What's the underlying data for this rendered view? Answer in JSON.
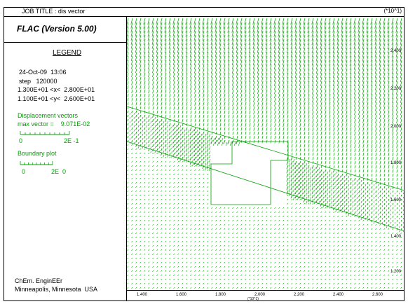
{
  "header": {
    "job_title": "JOB TITLE : dis vector",
    "y_unit": "(*10^1)"
  },
  "program": {
    "title": "FLAC (Version 5.00)"
  },
  "legend": {
    "title": "LEGEND",
    "date": "24-Oct-09  13:06",
    "step": "step   120000",
    "x_range": "1.300E+01 <x<  2.800E+01",
    "y_range": "1.100E+01 <y<  2.600E+01",
    "displacement": {
      "title": "Displacement vectors",
      "max_vector": "max vector =    9.071E-02",
      "scale_start": "0",
      "scale_end": "2E -1"
    },
    "boundary": {
      "title": "Boundary plot",
      "scale_start": "0",
      "scale_end": "2E  0"
    }
  },
  "footer": {
    "org": "ChEm. EnginEEr",
    "location": "Minneapolis, Minnesota  USA"
  },
  "axes": {
    "x_ticks": [
      "1.400",
      "1.600",
      "1.800",
      "2.000",
      "2.200",
      "2.400",
      "2.600"
    ],
    "y_ticks": [
      "2.400",
      "2.200",
      "2.000",
      "1.800",
      "1.600",
      "1.400",
      "1.200"
    ],
    "x_unit": "(*10^1)"
  },
  "colors": {
    "vectors": "#00a000",
    "frame": "#000000"
  }
}
